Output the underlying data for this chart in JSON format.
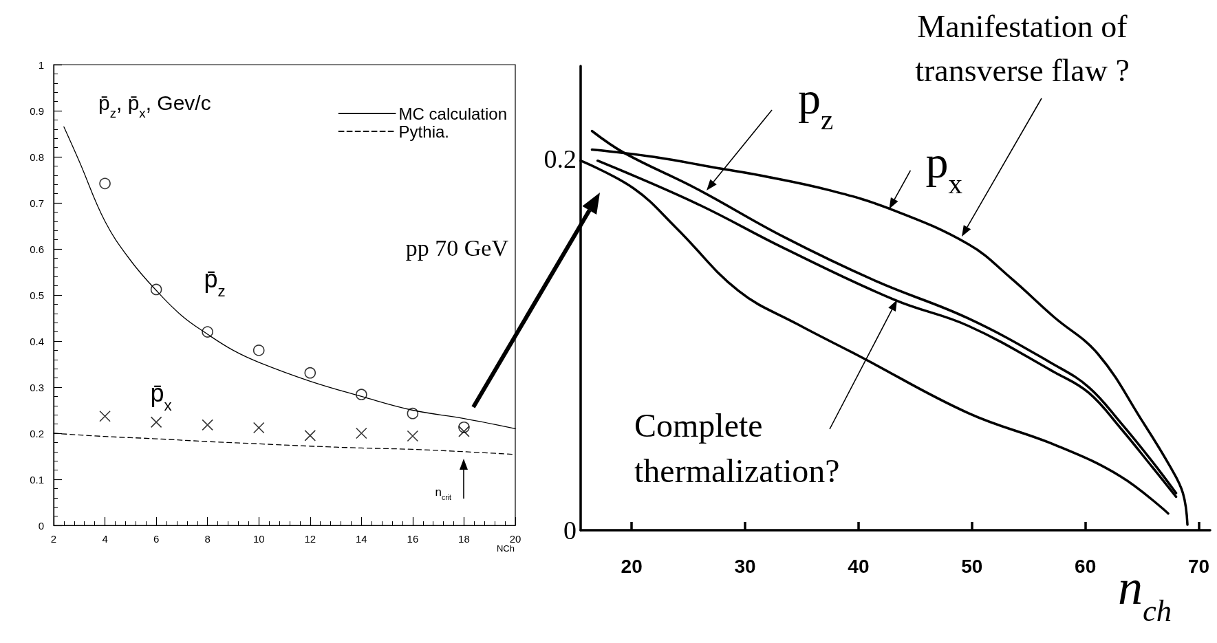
{
  "chart_data": [
    {
      "type": "scatter",
      "ylabel": "p̄$_{z}$, p̄$_{x}$,  Gev/c",
      "xlabel": "NCh",
      "xlim": [
        2,
        20
      ],
      "ylim": [
        0,
        1
      ],
      "xticks": [
        2,
        4,
        6,
        8,
        10,
        12,
        14,
        16,
        18,
        20
      ],
      "yticks": [
        0,
        0.1,
        0.2,
        0.3,
        0.4,
        0.5,
        0.6,
        0.7,
        0.8,
        0.9,
        1
      ],
      "legend": "top right",
      "series": [
        {
          "type": "line",
          "name": "MC calculation",
          "color": "#000000",
          "line_style": "solid",
          "marker": "none",
          "x": [
            2.4,
            3,
            4,
            5,
            6,
            7,
            8,
            9,
            10,
            12,
            14,
            16,
            18,
            20
          ],
          "values": [
            0.865,
            0.79,
            0.66,
            0.575,
            0.51,
            0.455,
            0.415,
            0.38,
            0.354,
            0.313,
            0.28,
            0.25,
            0.232,
            0.21
          ]
        },
        {
          "type": "line",
          "name": "Pythia.",
          "color": "#000000",
          "line_style": "dashed",
          "marker": "none",
          "x": [
            2,
            4,
            6,
            8,
            10,
            12,
            14,
            16,
            18,
            20
          ],
          "values": [
            0.2,
            0.193,
            0.188,
            0.182,
            0.177,
            0.172,
            0.168,
            0.165,
            0.16,
            0.154
          ]
        },
        {
          "color": "#000000",
          "marker": "circle",
          "x": [
            4,
            6,
            8,
            10,
            12,
            14,
            16,
            18
          ],
          "values": [
            0.742,
            0.512,
            0.42,
            0.38,
            0.331,
            0.284,
            0.243,
            0.213
          ]
        },
        {
          "color": "#000000",
          "marker": "cross",
          "x": [
            4,
            6,
            8,
            10,
            12,
            14,
            16,
            18
          ],
          "values": [
            0.237,
            0.224,
            0.218,
            0.212,
            0.195,
            0.2,
            0.194,
            0.204
          ]
        }
      ],
      "annotations": [
        "pp 70 GeV",
        "p̄$_{z}$",
        "p̄$_{x}$",
        "n$_{crit}$"
      ]
    },
    {
      "type": "line",
      "xlabel": "n$_{ch}$",
      "xlim": [
        15.5,
        71
      ],
      "ylim": [
        0,
        0.25
      ],
      "xticks": [
        20,
        30,
        40,
        50,
        60,
        70
      ],
      "yticks": [
        0,
        0.2
      ],
      "series": [
        {
          "color": "#000000",
          "x": [
            16.5,
            22.0,
            27.6,
            31.4,
            37.5,
            42.8,
            49.7,
            53.4,
            57.2,
            61.1,
            65.1,
            67.5,
            68.6,
            69.0
          ],
          "values": [
            0.205,
            0.201,
            0.195,
            0.191,
            0.183,
            0.173,
            0.154,
            0.136,
            0.115,
            0.095,
            0.058,
            0.034,
            0.02,
            0.003
          ]
        },
        {
          "color": "#000000",
          "x": [
            16.5,
            19.4,
            25.7,
            33.4,
            41.6,
            49.7,
            57.3,
            60.3,
            63.1,
            65.9,
            68.0
          ],
          "values": [
            0.215,
            0.203,
            0.184,
            0.158,
            0.134,
            0.114,
            0.089,
            0.077,
            0.058,
            0.037,
            0.02
          ]
        },
        {
          "color": "#000000",
          "x": [
            17.0,
            25.7,
            33.4,
            43.2,
            49.7,
            57.3,
            60.3,
            63.1,
            65.9,
            68.0
          ],
          "values": [
            0.199,
            0.176,
            0.152,
            0.124,
            0.11,
            0.085,
            0.074,
            0.055,
            0.034,
            0.018
          ]
        },
        {
          "color": "#000000",
          "x": [
            15.5,
            20.2,
            23.9,
            29.4,
            34.6,
            40,
            49.7,
            57.3,
            63.1,
            67.3
          ],
          "values": [
            0.199,
            0.184,
            0.163,
            0.129,
            0.111,
            0.094,
            0.063,
            0.046,
            0.029,
            0.009
          ]
        }
      ],
      "annotations": [
        "Manifestation of\ntransverse flaw ?",
        {
          "text": "p$_{z}$",
          "x": 26.6,
          "y": 0.183
        },
        {
          "text": "p$_{x}$",
          "x": 42.7,
          "y": 0.173
        },
        "Complete\nthermalization?"
      ]
    }
  ]
}
